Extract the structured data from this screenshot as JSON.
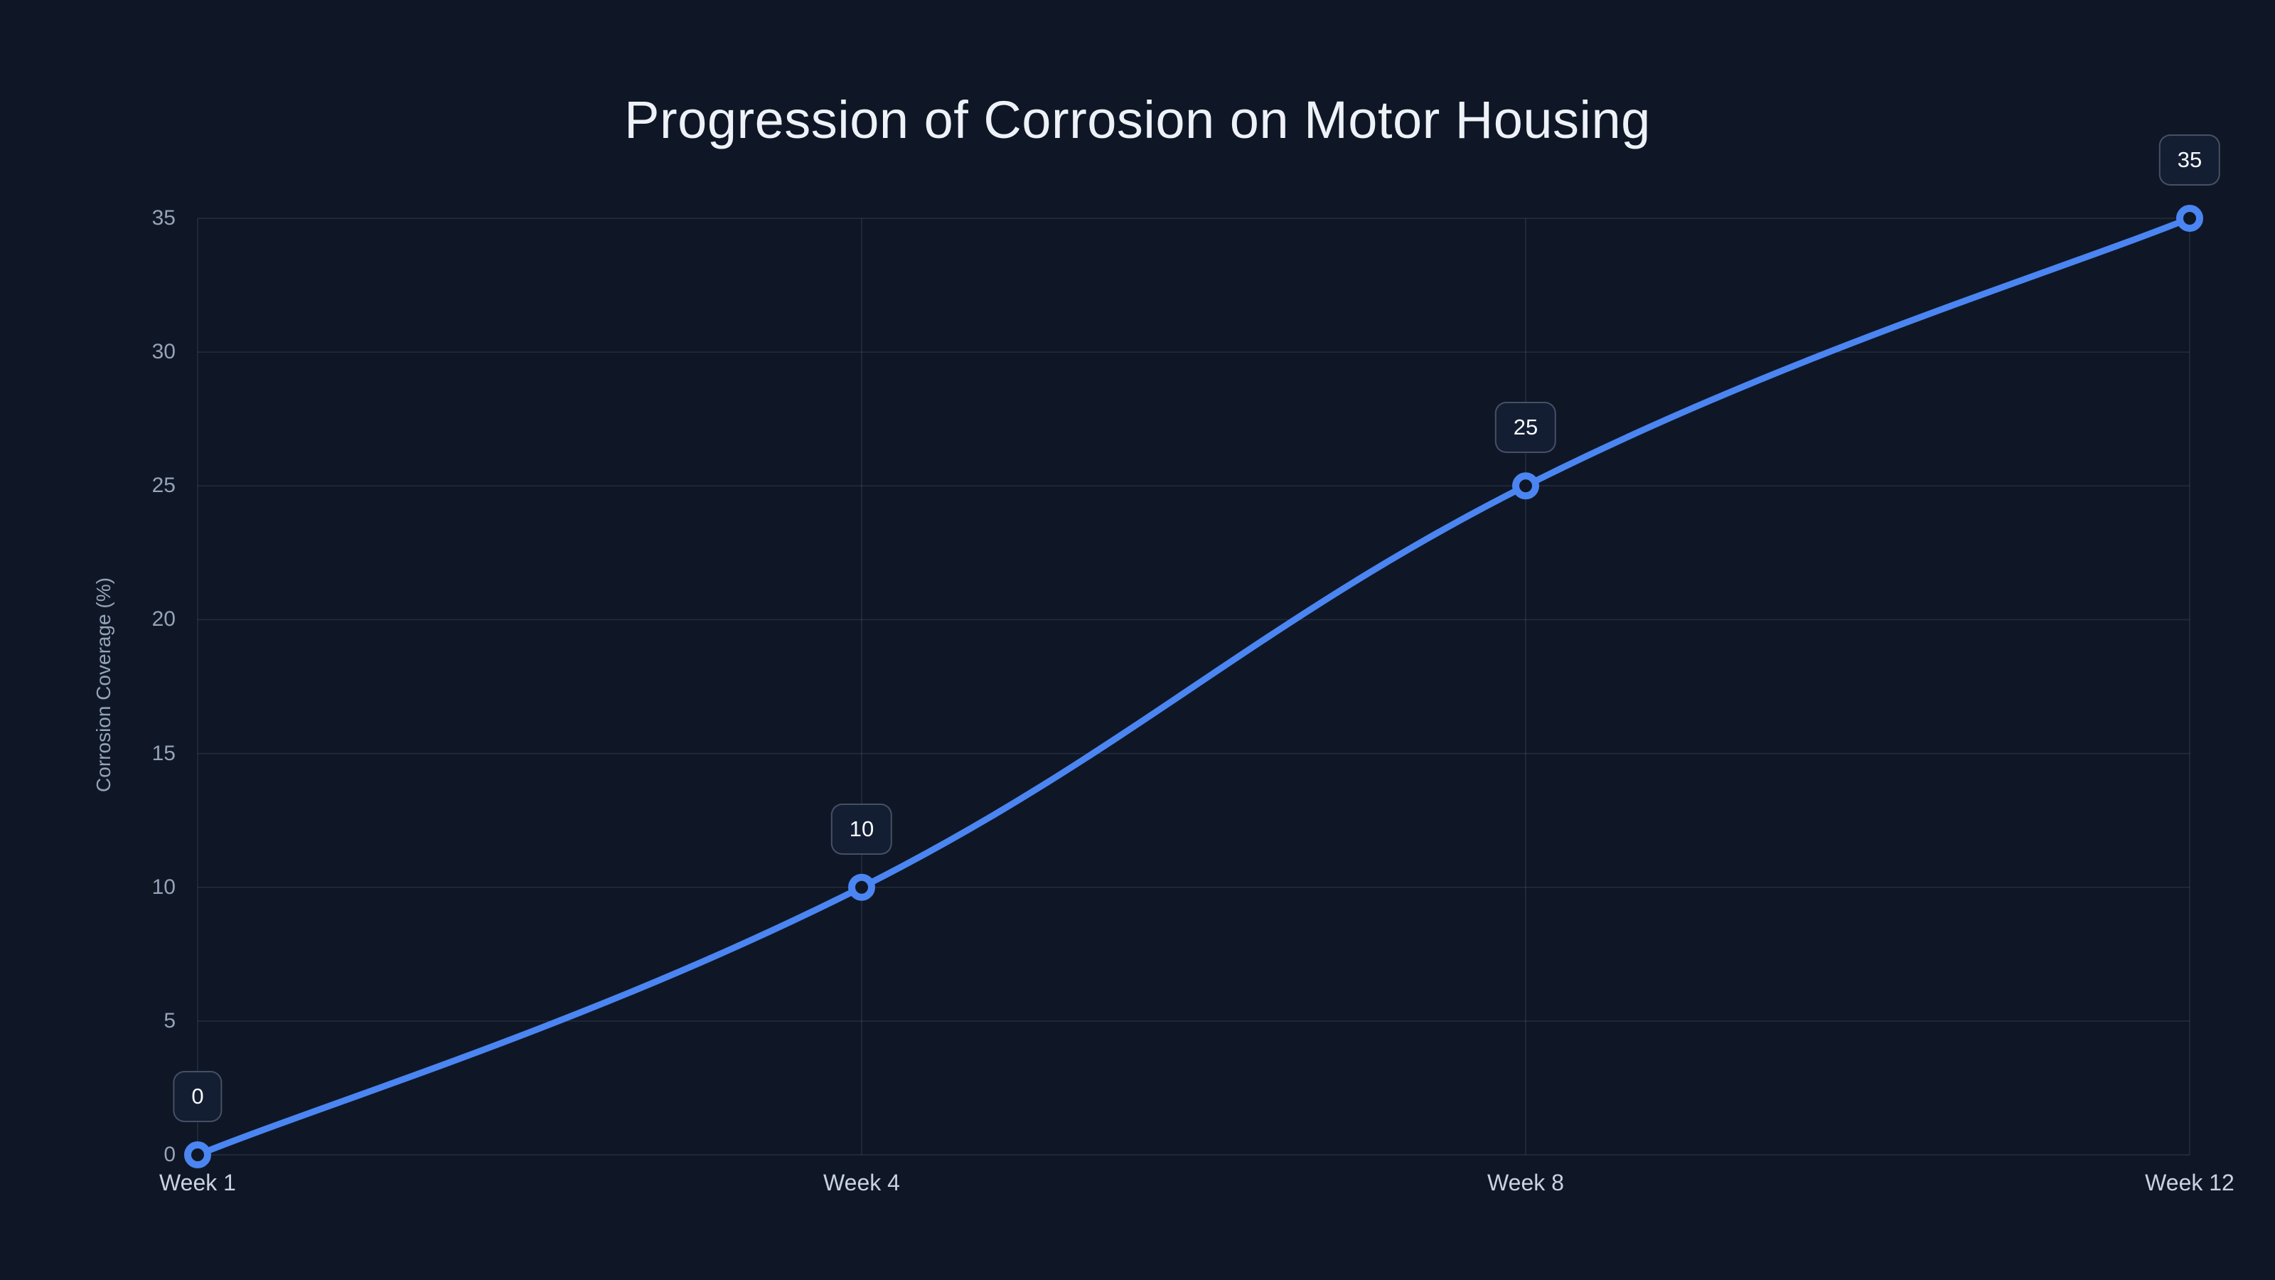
{
  "page": {
    "background": "#0f1726"
  },
  "chart_data": {
    "type": "line",
    "title": "Progression of Corrosion on Motor Housing",
    "categories": [
      "Week 1",
      "Week 4",
      "Week 8",
      "Week 12"
    ],
    "values": [
      0,
      10,
      25,
      35
    ],
    "data_labels": [
      "0",
      "10",
      "25",
      "35"
    ],
    "xlabel": "",
    "ylabel": "Corrosion Coverage (%)",
    "ylim": [
      0,
      35
    ],
    "yticks": [
      0,
      5,
      10,
      15,
      20,
      25,
      30,
      35
    ],
    "grid": true,
    "legend": "none",
    "smooth": true,
    "colors": {
      "line": "#4b85f2",
      "point_ring": "#4b85f2",
      "point_fill": "#0f1726",
      "grid_line": "rgba(148,163,184,0.16)",
      "title_text": "#eef2f8",
      "y_tick_text": "#94a3b8",
      "x_tick_text": "#c9d3e0",
      "badge_fill": "#141e33",
      "badge_border": "rgba(148,163,184,0.38)",
      "badge_text": "#f8fafc",
      "background": "#0f1726"
    }
  }
}
